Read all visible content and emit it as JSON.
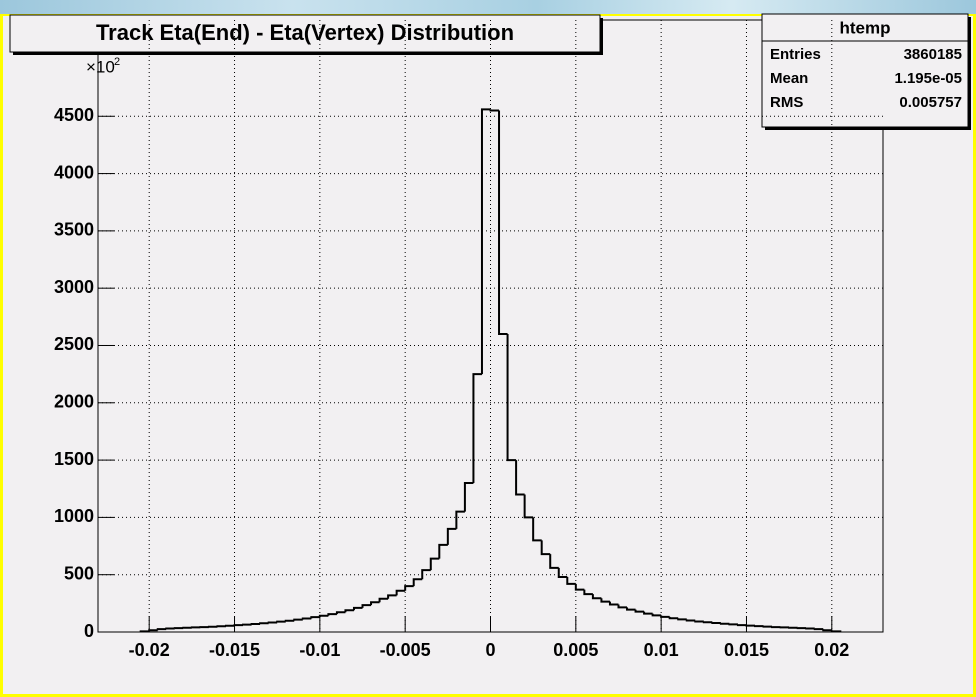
{
  "chart_data": {
    "type": "histogram",
    "title": "Track Eta(End) - Eta(Vertex) Distribution",
    "y_multiplier": {
      "base": "×10",
      "exponent": "2"
    },
    "stats": {
      "title": "htemp",
      "rows": [
        [
          "Entries",
          "3860185"
        ],
        [
          "Mean",
          "1.195e-05"
        ],
        [
          "RMS",
          "0.005757"
        ]
      ]
    },
    "bins": [
      -0.0205,
      -0.02,
      -0.0195,
      -0.019,
      -0.0185,
      -0.018,
      -0.0175,
      -0.017,
      -0.0165,
      -0.016,
      -0.0155,
      -0.015,
      -0.0145,
      -0.014,
      -0.0135,
      -0.013,
      -0.0125,
      -0.012,
      -0.0115,
      -0.011,
      -0.0105,
      -0.01,
      -0.0095,
      -0.009,
      -0.0085,
      -0.008,
      -0.0075,
      -0.007,
      -0.0065,
      -0.006,
      -0.0055,
      -0.005,
      -0.0045,
      -0.004,
      -0.0035,
      -0.003,
      -0.0025,
      -0.002,
      -0.0015,
      -0.001,
      -0.0005,
      0,
      0.0005,
      0.001,
      0.0015,
      0.002,
      0.0025,
      0.003,
      0.0035,
      0.004,
      0.0045,
      0.005,
      0.0055,
      0.006,
      0.0065,
      0.007,
      0.0075,
      0.008,
      0.0085,
      0.009,
      0.0095,
      0.01,
      0.0105,
      0.011,
      0.0115,
      0.012,
      0.0125,
      0.013,
      0.0135,
      0.014,
      0.0145,
      0.015,
      0.0155,
      0.016,
      0.0165,
      0.017,
      0.0175,
      0.018,
      0.0185,
      0.019,
      0.0195,
      0.02,
      0.0205
    ],
    "values": [
      5,
      15,
      25,
      30,
      34,
      37,
      40,
      43,
      46,
      50,
      55,
      60,
      64,
      70,
      76,
      83,
      90,
      98,
      108,
      118,
      130,
      142,
      156,
      172,
      190,
      210,
      235,
      260,
      290,
      320,
      360,
      400,
      460,
      540,
      640,
      760,
      900,
      1050,
      1300,
      2250,
      4560,
      4550,
      2600,
      1500,
      1200,
      1000,
      800,
      680,
      560,
      480,
      420,
      370,
      330,
      295,
      265,
      240,
      215,
      195,
      178,
      160,
      145,
      132,
      120,
      110,
      100,
      92,
      85,
      78,
      72,
      66,
      60,
      56,
      51,
      47,
      43,
      40,
      37,
      34,
      30,
      25,
      15,
      5
    ],
    "color": "#000000",
    "xlim": [
      -0.023,
      0.023
    ],
    "xticks": [
      -0.02,
      -0.015,
      -0.01,
      -0.005,
      0,
      0.005,
      0.01,
      0.015,
      0.02
    ],
    "ylim": [
      0,
      5340
    ],
    "yticks": [
      0,
      500,
      1000,
      1500,
      2000,
      2500,
      3000,
      3500,
      4000,
      4500
    ],
    "grid": true
  }
}
